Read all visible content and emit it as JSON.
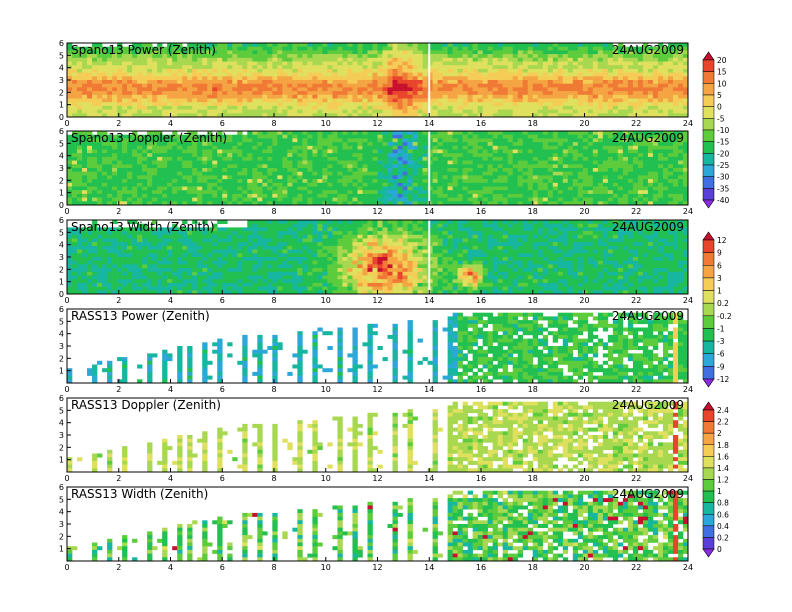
{
  "date": "24AUG2009",
  "chart_data": [
    {
      "type": "heatmap",
      "title": "Spano13 Power (Zenith)",
      "date": "24AUG2009",
      "xlim": [
        0,
        24
      ],
      "ylim": [
        0,
        6
      ],
      "xticks": [
        "0",
        "2",
        "4",
        "6",
        "8",
        "10",
        "12",
        "14",
        "16",
        "18",
        "20",
        "22",
        "24"
      ],
      "yticks": [
        "0",
        "1",
        "2",
        "3",
        "4",
        "5",
        "6"
      ],
      "colorbar": "a",
      "pattern": "power"
    },
    {
      "type": "heatmap",
      "title": "Spano13 Doppler (Zenith)",
      "date": "24AUG2009",
      "xlim": [
        0,
        24
      ],
      "ylim": [
        0,
        6
      ],
      "xticks": [
        "0",
        "2",
        "4",
        "6",
        "8",
        "10",
        "12",
        "14",
        "16",
        "18",
        "20",
        "22",
        "24"
      ],
      "yticks": [
        "0",
        "1",
        "2",
        "3",
        "4",
        "5",
        "6"
      ],
      "colorbar": "a",
      "pattern": "doppler"
    },
    {
      "type": "heatmap",
      "title": "Spano13 Width (Zenith)",
      "date": "24AUG2009",
      "xlim": [
        0,
        24
      ],
      "ylim": [
        0,
        6
      ],
      "xticks": [
        "0",
        "2",
        "4",
        "6",
        "8",
        "10",
        "12",
        "14",
        "16",
        "18",
        "20",
        "22",
        "24"
      ],
      "yticks": [
        "0",
        "1",
        "2",
        "3",
        "4",
        "5",
        "6"
      ],
      "colorbar": "b",
      "pattern": "width"
    },
    {
      "type": "heatmap",
      "title": "RASS13 Power (Zenith)",
      "date": "24AUG2009",
      "xlim": [
        0,
        24
      ],
      "ylim": [
        0,
        6
      ],
      "xticks": [
        "0",
        "2",
        "4",
        "6",
        "8",
        "10",
        "12",
        "14",
        "16",
        "18",
        "20",
        "22",
        "24"
      ],
      "yticks": [
        "1",
        "2",
        "3",
        "4",
        "5",
        "6"
      ],
      "colorbar": "b",
      "pattern": "rass_power"
    },
    {
      "type": "heatmap",
      "title": "RASS13 Doppler (Zenith)",
      "date": "24AUG2009",
      "xlim": [
        0,
        24
      ],
      "ylim": [
        0,
        6
      ],
      "xticks": [
        "0",
        "2",
        "4",
        "6",
        "8",
        "10",
        "12",
        "14",
        "16",
        "18",
        "20",
        "22",
        "24"
      ],
      "yticks": [
        "1",
        "2",
        "3",
        "4",
        "5",
        "6"
      ],
      "colorbar": "c",
      "pattern": "rass_doppler"
    },
    {
      "type": "heatmap",
      "title": "RASS13 Width (Zenith)",
      "date": "24AUG2009",
      "xlim": [
        0,
        24
      ],
      "ylim": [
        0,
        6
      ],
      "xticks": [
        "0",
        "2",
        "4",
        "6",
        "8",
        "10",
        "12",
        "14",
        "16",
        "18",
        "20",
        "22",
        "24"
      ],
      "yticks": [
        "1",
        "2",
        "3",
        "4",
        "5",
        "6"
      ],
      "colorbar": "c",
      "pattern": "rass_width"
    }
  ],
  "colorbars": {
    "a": {
      "labels": [
        "20",
        "15",
        "10",
        "5",
        "0",
        "-5",
        "-10",
        "-15",
        "-20",
        "-25",
        "-30",
        "-35",
        "-40"
      ],
      "colors": [
        "#c8102e",
        "#e8452c",
        "#f07a35",
        "#f4a442",
        "#f5cc55",
        "#dfe05e",
        "#a8d850",
        "#5ccc3c",
        "#22c050",
        "#17b6a0",
        "#2ba8d8",
        "#3f6fe0",
        "#5a3fd8",
        "#8a2be2"
      ]
    },
    "b": {
      "labels": [
        "12",
        "9",
        "6",
        "3",
        "1",
        "0.2",
        "-0.2",
        "-1",
        "-3",
        "-6",
        "-9",
        "-12"
      ],
      "colors": [
        "#c8102e",
        "#e8452c",
        "#f07a35",
        "#f4a442",
        "#f5cc55",
        "#dfe05e",
        "#a8d850",
        "#5ccc3c",
        "#22c050",
        "#17b6a0",
        "#2ba8d8",
        "#3f6fe0",
        "#8a2be2"
      ]
    },
    "c": {
      "labels": [
        "2.4",
        "2.2",
        "2",
        "1.8",
        "1.6",
        "1.4",
        "1.2",
        "1",
        "0.8",
        "0.6",
        "0.4",
        "0.2",
        "0"
      ],
      "colors": [
        "#c8102e",
        "#e8452c",
        "#f07a35",
        "#f4a442",
        "#f5cc55",
        "#dfe05e",
        "#a8d850",
        "#5ccc3c",
        "#22c050",
        "#17b6a0",
        "#2ba8d8",
        "#3f6fe0",
        "#5a3fd8",
        "#8a2be2"
      ]
    }
  }
}
